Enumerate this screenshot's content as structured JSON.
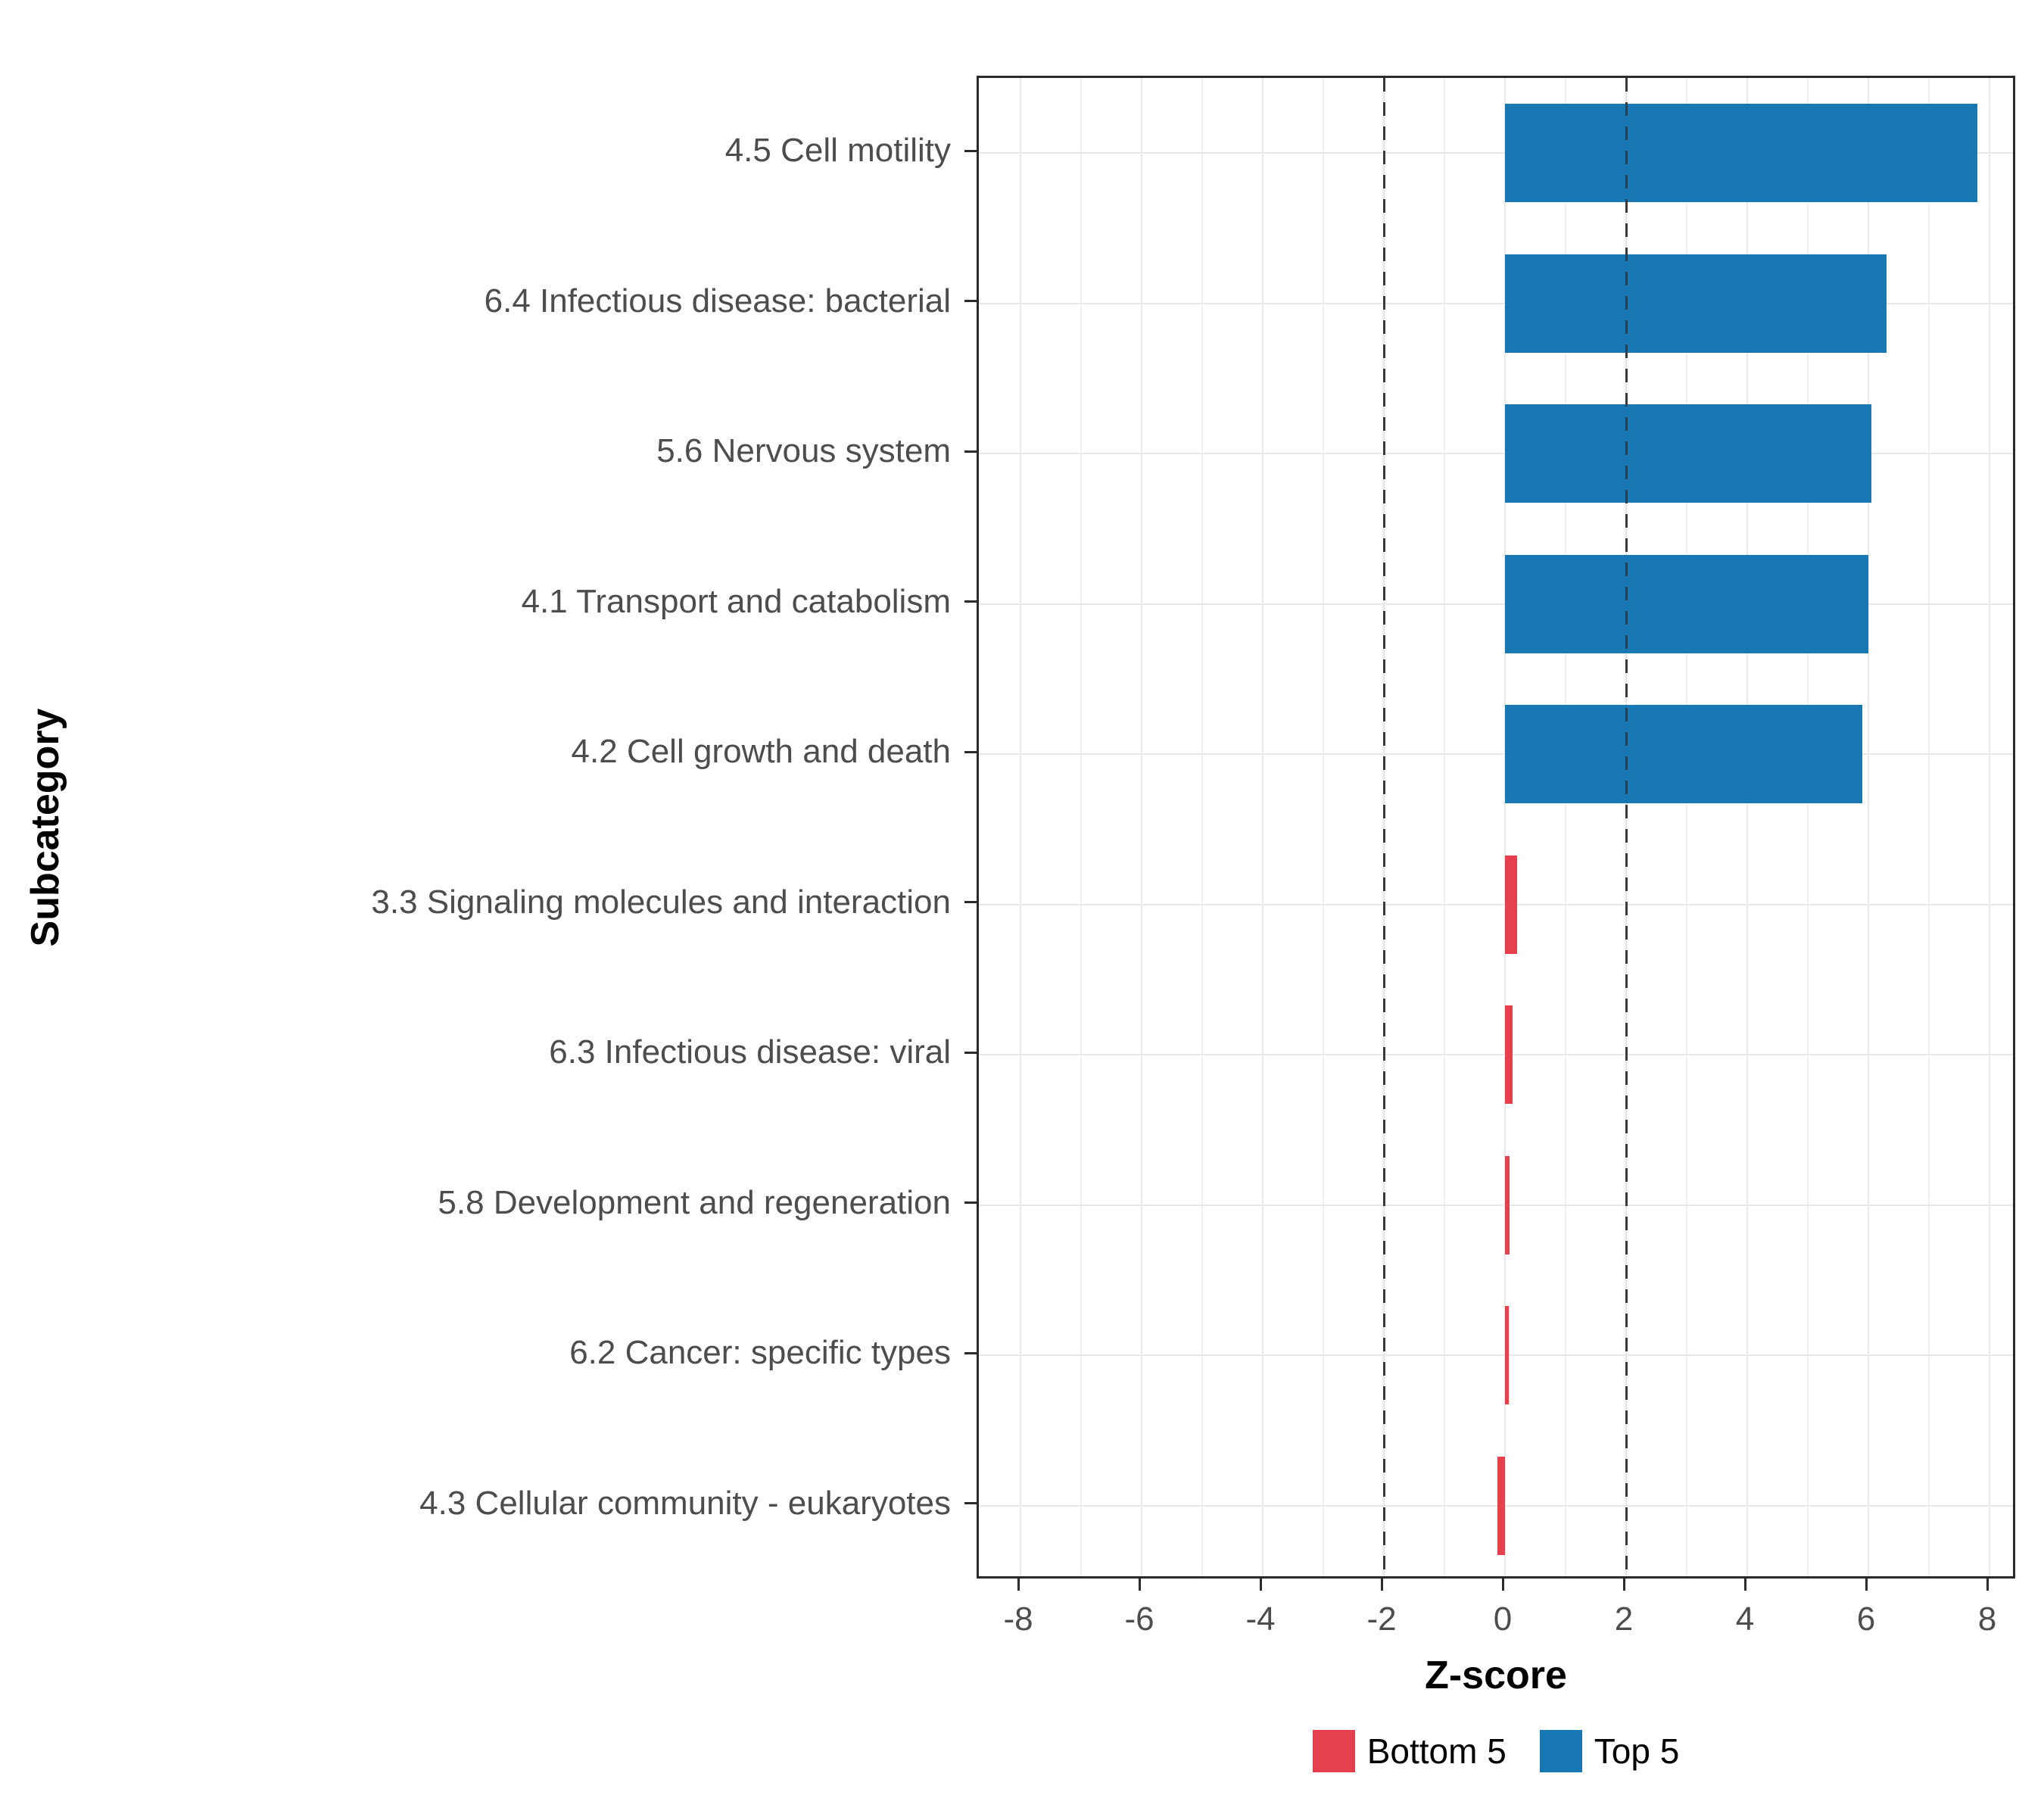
{
  "chart_data": {
    "type": "bar",
    "orientation": "horizontal",
    "xlabel": "Z-score",
    "ylabel": "Subcategory",
    "xlim": [
      -8.7,
      8.5
    ],
    "xticks": [
      -8,
      -6,
      -4,
      -2,
      0,
      2,
      4,
      6,
      8
    ],
    "minor_xticks": [
      -7,
      -5,
      -3,
      -1,
      1,
      3,
      5,
      7
    ],
    "reference_lines": [
      -2,
      2
    ],
    "grid": true,
    "bars": [
      {
        "label": "4.5 Cell motility",
        "value": 7.8,
        "group": "Top 5"
      },
      {
        "label": "6.4 Infectious disease: bacterial",
        "value": 6.3,
        "group": "Top 5"
      },
      {
        "label": "5.6 Nervous system",
        "value": 6.05,
        "group": "Top 5"
      },
      {
        "label": "4.1 Transport and catabolism",
        "value": 6.0,
        "group": "Top 5"
      },
      {
        "label": "4.2 Cell growth and death",
        "value": 5.9,
        "group": "Top 5"
      },
      {
        "label": "3.3 Signaling molecules and interaction",
        "value": 0.2,
        "group": "Bottom 5"
      },
      {
        "label": "6.3 Infectious disease: viral",
        "value": 0.12,
        "group": "Bottom 5"
      },
      {
        "label": "5.8 Development and regeneration",
        "value": 0.07,
        "group": "Bottom 5"
      },
      {
        "label": "6.2 Cancer: specific types",
        "value": 0.06,
        "group": "Bottom 5"
      },
      {
        "label": "4.3 Cellular community - eukaryotes",
        "value": -0.12,
        "group": "Bottom 5"
      }
    ],
    "legend": [
      {
        "label": "Bottom 5",
        "color": "#E6404C"
      },
      {
        "label": "Top 5",
        "color": "#1878B4"
      }
    ],
    "legend_position": "bottom",
    "colors": {
      "major_grid": "#e8e8e8",
      "minor_grid": "#f3f3f3",
      "panel_border": "#2b2b2b",
      "tick_text": "#4d4d4d",
      "reference_line": "#3a3a3a"
    }
  }
}
